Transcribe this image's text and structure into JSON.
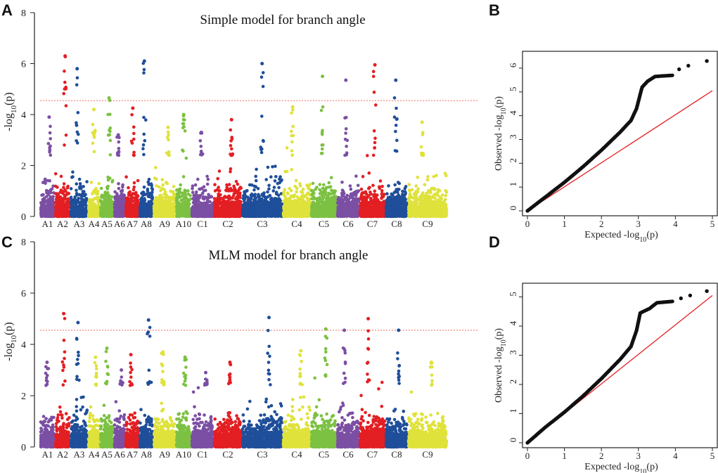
{
  "panels": {
    "a": "A",
    "b": "B",
    "c": "C",
    "d": "D"
  },
  "colors": {
    "purple": "#7b4fa3",
    "red": "#e31f23",
    "blue": "#1f4e9a",
    "yellow": "#dfe23a",
    "green": "#7cc142",
    "threshold": "#ef6b5b",
    "qq_point": "#111111",
    "qq_line": "#e31f23"
  },
  "chromosomes": [
    {
      "name": "A1",
      "color": "purple"
    },
    {
      "name": "A2",
      "color": "red"
    },
    {
      "name": "A3",
      "color": "blue"
    },
    {
      "name": "A4",
      "color": "yellow"
    },
    {
      "name": "A5",
      "color": "green"
    },
    {
      "name": "A6",
      "color": "purple"
    },
    {
      "name": "A7",
      "color": "red"
    },
    {
      "name": "A8",
      "color": "blue"
    },
    {
      "name": "A9",
      "color": "yellow"
    },
    {
      "name": "A10",
      "color": "green"
    },
    {
      "name": "C1",
      "color": "purple"
    },
    {
      "name": "C2",
      "color": "red"
    },
    {
      "name": "C3",
      "color": "blue"
    },
    {
      "name": "C4",
      "color": "yellow"
    },
    {
      "name": "C5",
      "color": "green"
    },
    {
      "name": "C6",
      "color": "purple"
    },
    {
      "name": "C7",
      "color": "red"
    },
    {
      "name": "C8",
      "color": "blue"
    },
    {
      "name": "C9",
      "color": "yellow"
    }
  ],
  "chart_data": [
    {
      "id": "A",
      "type": "scatter",
      "kind": "manhattan",
      "title": "Simple model for branch angle",
      "ylabel": "-log10(p)",
      "ylabel_parts": {
        "pre": "-log",
        "sub": "10",
        "post": "(p)"
      },
      "ylim": [
        0,
        8
      ],
      "yticks": [
        "0",
        "2",
        "4",
        "6",
        "8"
      ],
      "threshold": 4.55,
      "chrom_peaks": [
        3.9,
        6.3,
        5.8,
        4.2,
        4.65,
        3.2,
        4.25,
        6.1,
        3.5,
        4.0,
        3.3,
        3.8,
        6.0,
        4.3,
        5.5,
        5.35,
        5.95,
        5.35,
        3.7
      ]
    },
    {
      "id": "B",
      "type": "scatter",
      "kind": "qq",
      "xlabel": "Expected -log10(p)",
      "ylabel": "Observed -log10(p)",
      "xlabel_parts": {
        "pre": "Expected -log",
        "sub": "10",
        "post": "(p)"
      },
      "ylabel_parts": {
        "pre": "Observed -log",
        "sub": "10",
        "post": "(p)"
      },
      "xlim": [
        0,
        5
      ],
      "ylim": [
        0,
        6.5
      ],
      "xticks": [
        "0",
        "1",
        "2",
        "3",
        "4",
        "5"
      ],
      "yticks": [
        "0",
        "1",
        "2",
        "3",
        "4",
        "5",
        "6"
      ],
      "curve": [
        [
          0,
          0
        ],
        [
          0.5,
          0.6
        ],
        [
          1,
          1.2
        ],
        [
          1.5,
          1.85
        ],
        [
          2,
          2.55
        ],
        [
          2.5,
          3.3
        ],
        [
          2.8,
          3.8
        ],
        [
          2.95,
          4.3
        ],
        [
          3.0,
          4.6
        ],
        [
          3.1,
          5.2
        ],
        [
          3.25,
          5.45
        ],
        [
          3.45,
          5.65
        ],
        [
          3.95,
          5.7
        ]
      ],
      "tail_points": [
        [
          4.1,
          5.95
        ],
        [
          4.35,
          6.1
        ],
        [
          4.85,
          6.3
        ]
      ],
      "diagonal": [
        [
          0,
          0
        ],
        [
          5,
          5.05
        ]
      ]
    },
    {
      "id": "C",
      "type": "scatter",
      "kind": "manhattan",
      "title": "MLM model for branch angle",
      "ylabel": "-log10(p)",
      "ylabel_parts": {
        "pre": "-log",
        "sub": "10",
        "post": "(p)"
      },
      "ylim": [
        0,
        8
      ],
      "yticks": [
        "0",
        "2",
        "4",
        "6",
        "8"
      ],
      "threshold": 4.55,
      "chrom_peaks": [
        3.3,
        5.2,
        4.85,
        3.5,
        3.85,
        3.0,
        3.6,
        4.95,
        3.7,
        3.5,
        2.9,
        3.3,
        5.05,
        3.75,
        4.6,
        4.55,
        5.0,
        4.55,
        3.3
      ]
    },
    {
      "id": "D",
      "type": "scatter",
      "kind": "qq",
      "xlabel": "Expected -log10(p)",
      "ylabel": "Observed -log10(p)",
      "xlabel_parts": {
        "pre": "Expected -log",
        "sub": "10",
        "post": "(p)"
      },
      "ylabel_parts": {
        "pre": "Observed -log",
        "sub": "10",
        "post": "(p)"
      },
      "xlim": [
        0,
        5
      ],
      "ylim": [
        0,
        5.3
      ],
      "xticks": [
        "0",
        "1",
        "2",
        "3",
        "4",
        "5"
      ],
      "yticks": [
        "0",
        "1",
        "2",
        "3",
        "4",
        "5"
      ],
      "curve": [
        [
          0,
          0
        ],
        [
          0.5,
          0.55
        ],
        [
          1,
          1.05
        ],
        [
          1.5,
          1.6
        ],
        [
          2,
          2.2
        ],
        [
          2.5,
          2.85
        ],
        [
          2.8,
          3.3
        ],
        [
          2.95,
          3.85
        ],
        [
          3.05,
          4.45
        ],
        [
          3.3,
          4.6
        ],
        [
          3.5,
          4.8
        ],
        [
          3.95,
          4.85
        ]
      ],
      "tail_points": [
        [
          4.15,
          4.95
        ],
        [
          4.4,
          5.05
        ],
        [
          4.85,
          5.2
        ]
      ],
      "diagonal": [
        [
          0,
          0
        ],
        [
          5,
          5.05
        ]
      ]
    }
  ]
}
